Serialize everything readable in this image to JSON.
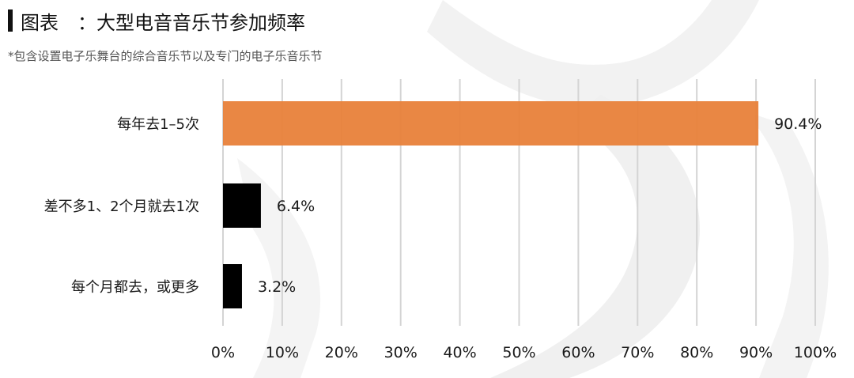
{
  "page": {
    "title": "图表　：大型电音音乐节参加频率",
    "subtitle": "*包含设置电子乐舞台的综合音乐节以及专门的电子乐音乐节"
  },
  "chart_data": {
    "type": "bar",
    "orientation": "horizontal",
    "categories": [
      "每年去1–5次",
      "差不多1、2个月就去1次",
      "每个月都去，或更多"
    ],
    "values": [
      90.4,
      6.4,
      3.2
    ],
    "value_labels": [
      "90.4%",
      "6.4%",
      "3.2%"
    ],
    "bar_colors": [
      "#e8813a",
      "#000000",
      "#000000"
    ],
    "xlim": [
      0,
      100
    ],
    "x_ticks": [
      0,
      10,
      20,
      30,
      40,
      50,
      60,
      70,
      80,
      90,
      100
    ],
    "x_tick_labels": [
      "0%",
      "10%",
      "20%",
      "30%",
      "40%",
      "50%",
      "60%",
      "70%",
      "80%",
      "90%",
      "100%"
    ],
    "grid": true,
    "legend": "none"
  }
}
